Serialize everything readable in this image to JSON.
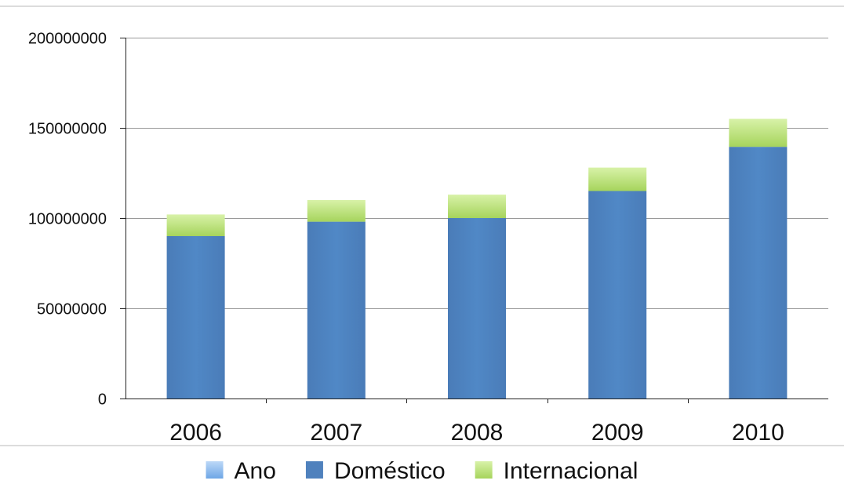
{
  "chart_data": {
    "type": "bar",
    "stacked": true,
    "title": "",
    "xlabel": "",
    "ylabel": "",
    "categories": [
      "2006",
      "2007",
      "2008",
      "2009",
      "2010"
    ],
    "ylim": [
      0,
      200000000
    ],
    "yticks": [
      0,
      50000000,
      100000000,
      150000000,
      200000000
    ],
    "ytick_labels": [
      "0",
      "50000000",
      "100000000",
      "150000000",
      "200000000"
    ],
    "grid": true,
    "legend_position": "bottom-center",
    "legend": [
      {
        "name": "Ano",
        "color": "#8fbdf0"
      },
      {
        "name": "Doméstico",
        "color": "#4f81bd"
      },
      {
        "name": "Internacional",
        "color": "#b9e27a"
      }
    ],
    "series": [
      {
        "name": "Ano",
        "color": "#8fbdf0",
        "values": [
          2006,
          2007,
          2008,
          2009,
          2010
        ]
      },
      {
        "name": "Doméstico",
        "color": "#4f81bd",
        "values": [
          90000000,
          98000000,
          100000000,
          115000000,
          139500000
        ]
      },
      {
        "name": "Internacional",
        "color": "#b9e27a",
        "values": [
          12000000,
          12000000,
          13000000,
          13000000,
          15500000
        ]
      }
    ]
  }
}
